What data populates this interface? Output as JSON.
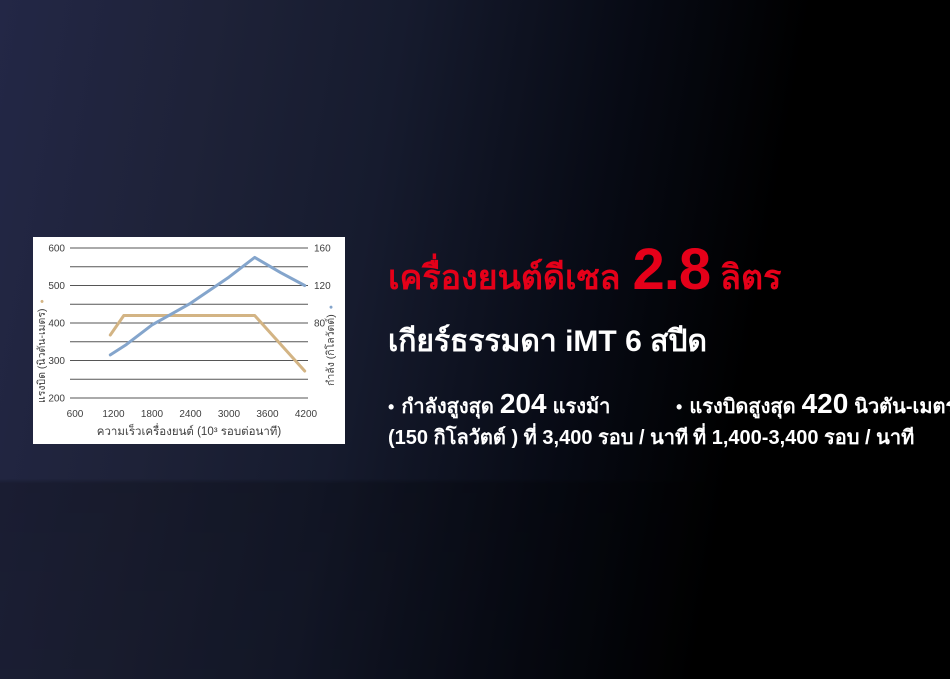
{
  "headline": {
    "prefix": "เครื่องยนต์ดีเซล",
    "big": "2.8",
    "suffix": "ลิตร"
  },
  "subtitle": "เกียร์ธรรมดา iMT 6 สปีด",
  "specs": [
    {
      "bullet": "•",
      "line1_pre": "กำลังสูงสุด",
      "line1_big": "204",
      "line1_post": "แรงม้า",
      "line2": "(150 กิโลวัตต์ ) ที่ 3,400 รอบ / นาที"
    },
    {
      "bullet": "•",
      "line1_pre": "แรงบิดสูงสุด",
      "line1_big": "420",
      "line1_post": "นิวตัน-เมตร",
      "line2": "ที่ 1,400-3,400 รอบ / นาที"
    }
  ],
  "colors": {
    "accent_red": "#e50019",
    "torque_line": "#d3b484",
    "power_line": "#84a5cc",
    "chart_bg": "#ffffff",
    "grid_line": "#565656",
    "chart_text": "#3e3e3e",
    "bg_navy": "#1e2238",
    "bg_black": "#000000"
  },
  "chart_data": {
    "type": "line",
    "title": "",
    "xlabel": "ความเร็วเครื่องยนต์ (10³ รอบต่อนาที)",
    "x_ticks": [
      600,
      1200,
      1800,
      2400,
      3000,
      3600,
      4200
    ],
    "xlim": [
      600,
      4200
    ],
    "grid": true,
    "legend_dot": "●",
    "left_axis": {
      "label": "แรงบิด (นิวตัน-เมตร)",
      "ticks": [
        600,
        500,
        400,
        300,
        200
      ],
      "lim": [
        200,
        600
      ],
      "grid_step": 50
    },
    "right_axis": {
      "label": "กำลัง (กิโลวัตต์)",
      "ticks": [
        160,
        120,
        80
      ],
      "lim": [
        0,
        160
      ]
    },
    "series": [
      {
        "name": "torque-nm",
        "axis": "left",
        "color": "#d3b484",
        "points": [
          [
            1150,
            368
          ],
          [
            1360,
            420
          ],
          [
            3400,
            420
          ],
          [
            4180,
            272
          ]
        ]
      },
      {
        "name": "power-kw",
        "axis": "right",
        "color": "#84a5cc",
        "points": [
          [
            1150,
            46
          ],
          [
            1400,
            57
          ],
          [
            1800,
            78
          ],
          [
            2400,
            101
          ],
          [
            3000,
            129
          ],
          [
            3400,
            150
          ],
          [
            3800,
            134
          ],
          [
            4180,
            120
          ]
        ]
      }
    ]
  }
}
